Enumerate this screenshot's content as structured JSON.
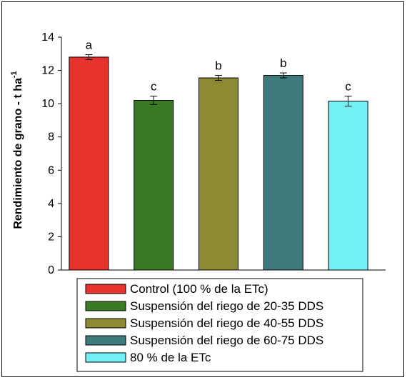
{
  "chart_data": {
    "type": "bar",
    "ylabel": "Rendimiento de grano - t ha",
    "ylabel_superscript": "-1",
    "ylim": [
      0,
      14
    ],
    "yticks": [
      0,
      2,
      4,
      6,
      8,
      10,
      12,
      14
    ],
    "grid": false,
    "legend_position": "bottom",
    "bars": [
      {
        "name": "Control (100 % de la ETc)",
        "value": 12.8,
        "error": 0.15,
        "significance": "a",
        "color": "#e8322d"
      },
      {
        "name": "Suspensión del riego de 20-35 DDS",
        "value": 10.2,
        "error": 0.25,
        "significance": "c",
        "color": "#3a7a24"
      },
      {
        "name": "Suspensión del riego de 40-55 DDS",
        "value": 11.55,
        "error": 0.15,
        "significance": "b",
        "color": "#8c8a32"
      },
      {
        "name": "Suspensión del riego de 60-75 DDS",
        "value": 11.7,
        "error": 0.15,
        "significance": "b",
        "color": "#3f7a7d"
      },
      {
        "name": "80 % de la ETc",
        "value": 10.15,
        "error": 0.3,
        "significance": "c",
        "color": "#72f0f5"
      }
    ]
  }
}
